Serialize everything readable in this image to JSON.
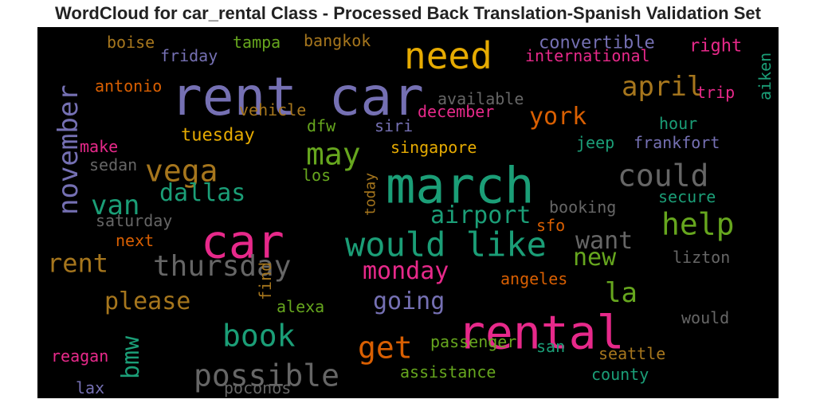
{
  "chart_data": {
    "type": "wordcloud",
    "title": "WordCloud for car_rental Class - Processed Back Translation-Spanish Validation Set",
    "background": "#000000",
    "words": [
      {
        "text": "rent car",
        "color": "#7570b3",
        "orientation": "horizontal"
      },
      {
        "text": "march",
        "color": "#1b9e77",
        "orientation": "horizontal"
      },
      {
        "text": "rental",
        "color": "#e7298a",
        "orientation": "horizontal"
      },
      {
        "text": "car",
        "color": "#e7298a",
        "orientation": "horizontal"
      },
      {
        "text": "need",
        "color": "#e6ab02",
        "orientation": "horizontal"
      },
      {
        "text": "would like",
        "color": "#1b9e77",
        "orientation": "horizontal"
      },
      {
        "text": "possible",
        "color": "#666666",
        "orientation": "horizontal"
      },
      {
        "text": "thursday",
        "color": "#666666",
        "orientation": "horizontal"
      },
      {
        "text": "november",
        "color": "#7570b3",
        "orientation": "vertical"
      },
      {
        "text": "may",
        "color": "#66a61e",
        "orientation": "horizontal"
      },
      {
        "text": "could",
        "color": "#666666",
        "orientation": "horizontal"
      },
      {
        "text": "help",
        "color": "#66a61e",
        "orientation": "horizontal"
      },
      {
        "text": "vega",
        "color": "#a6761d",
        "orientation": "horizontal"
      },
      {
        "text": "book",
        "color": "#1b9e77",
        "orientation": "horizontal"
      },
      {
        "text": "get",
        "color": "#d95f02",
        "orientation": "horizontal"
      },
      {
        "text": "van",
        "color": "#1b9e77",
        "orientation": "horizontal"
      },
      {
        "text": "bmw",
        "color": "#1b9e77",
        "orientation": "vertical"
      },
      {
        "text": "april",
        "color": "#a6761d",
        "orientation": "horizontal"
      },
      {
        "text": "la",
        "color": "#66a61e",
        "orientation": "horizontal"
      },
      {
        "text": "rent",
        "color": "#a6761d",
        "orientation": "horizontal"
      },
      {
        "text": "please",
        "color": "#a6761d",
        "orientation": "horizontal"
      },
      {
        "text": "dallas",
        "color": "#1b9e77",
        "orientation": "horizontal"
      },
      {
        "text": "airport",
        "color": "#1b9e77",
        "orientation": "horizontal"
      },
      {
        "text": "york",
        "color": "#d95f02",
        "orientation": "horizontal"
      },
      {
        "text": "monday",
        "color": "#e7298a",
        "orientation": "horizontal"
      },
      {
        "text": "going",
        "color": "#7570b3",
        "orientation": "horizontal"
      },
      {
        "text": "want",
        "color": "#666666",
        "orientation": "horizontal"
      },
      {
        "text": "new",
        "color": "#66a61e",
        "orientation": "horizontal"
      },
      {
        "text": "tuesday",
        "color": "#e6ab02",
        "orientation": "horizontal"
      },
      {
        "text": "singapore",
        "color": "#e6ab02",
        "orientation": "horizontal"
      },
      {
        "text": "international",
        "color": "#e7298a",
        "orientation": "horizontal"
      },
      {
        "text": "convertible",
        "color": "#7570b3",
        "orientation": "horizontal"
      },
      {
        "text": "frankfort",
        "color": "#7570b3",
        "orientation": "horizontal"
      },
      {
        "text": "available",
        "color": "#666666",
        "orientation": "horizontal"
      },
      {
        "text": "december",
        "color": "#e7298a",
        "orientation": "horizontal"
      },
      {
        "text": "vehicle",
        "color": "#a6761d",
        "orientation": "horizontal"
      },
      {
        "text": "antonio",
        "color": "#d95f02",
        "orientation": "horizontal"
      },
      {
        "text": "friday",
        "color": "#7570b3",
        "orientation": "horizontal"
      },
      {
        "text": "boise",
        "color": "#a6761d",
        "orientation": "horizontal"
      },
      {
        "text": "tampa",
        "color": "#66a61e",
        "orientation": "horizontal"
      },
      {
        "text": "bangkok",
        "color": "#a6761d",
        "orientation": "horizontal"
      },
      {
        "text": "right",
        "color": "#e7298a",
        "orientation": "horizontal"
      },
      {
        "text": "aiken",
        "color": "#1b9e77",
        "orientation": "vertical"
      },
      {
        "text": "trip",
        "color": "#e7298a",
        "orientation": "horizontal"
      },
      {
        "text": "hour",
        "color": "#1b9e77",
        "orientation": "horizontal"
      },
      {
        "text": "jeep",
        "color": "#1b9e77",
        "orientation": "horizontal"
      },
      {
        "text": "siri",
        "color": "#7570b3",
        "orientation": "horizontal"
      },
      {
        "text": "dfw",
        "color": "#66a61e",
        "orientation": "horizontal"
      },
      {
        "text": "make",
        "color": "#e7298a",
        "orientation": "horizontal"
      },
      {
        "text": "sedan",
        "color": "#666666",
        "orientation": "horizontal"
      },
      {
        "text": "los",
        "color": "#66a61e",
        "orientation": "horizontal"
      },
      {
        "text": "today",
        "color": "#a6761d",
        "orientation": "vertical"
      },
      {
        "text": "saturday",
        "color": "#666666",
        "orientation": "horizontal"
      },
      {
        "text": "booking",
        "color": "#666666",
        "orientation": "horizontal"
      },
      {
        "text": "secure",
        "color": "#1b9e77",
        "orientation": "horizontal"
      },
      {
        "text": "sfo",
        "color": "#d95f02",
        "orientation": "horizontal"
      },
      {
        "text": "next",
        "color": "#d95f02",
        "orientation": "horizontal"
      },
      {
        "text": "lizton",
        "color": "#666666",
        "orientation": "horizontal"
      },
      {
        "text": "angeles",
        "color": "#d95f02",
        "orientation": "horizontal"
      },
      {
        "text": "find",
        "color": "#a6761d",
        "orientation": "vertical"
      },
      {
        "text": "alexa",
        "color": "#66a61e",
        "orientation": "horizontal"
      },
      {
        "text": "would",
        "color": "#666666",
        "orientation": "horizontal"
      },
      {
        "text": "passenger",
        "color": "#66a61e",
        "orientation": "horizontal"
      },
      {
        "text": "san",
        "color": "#1b9e77",
        "orientation": "horizontal"
      },
      {
        "text": "seattle",
        "color": "#a6761d",
        "orientation": "horizontal"
      },
      {
        "text": "reagan",
        "color": "#e7298a",
        "orientation": "horizontal"
      },
      {
        "text": "assistance",
        "color": "#66a61e",
        "orientation": "horizontal"
      },
      {
        "text": "county",
        "color": "#1b9e77",
        "orientation": "horizontal"
      },
      {
        "text": "lax",
        "color": "#7570b3",
        "orientation": "horizontal"
      },
      {
        "text": "poconos",
        "color": "#666666",
        "orientation": "horizontal"
      }
    ]
  }
}
